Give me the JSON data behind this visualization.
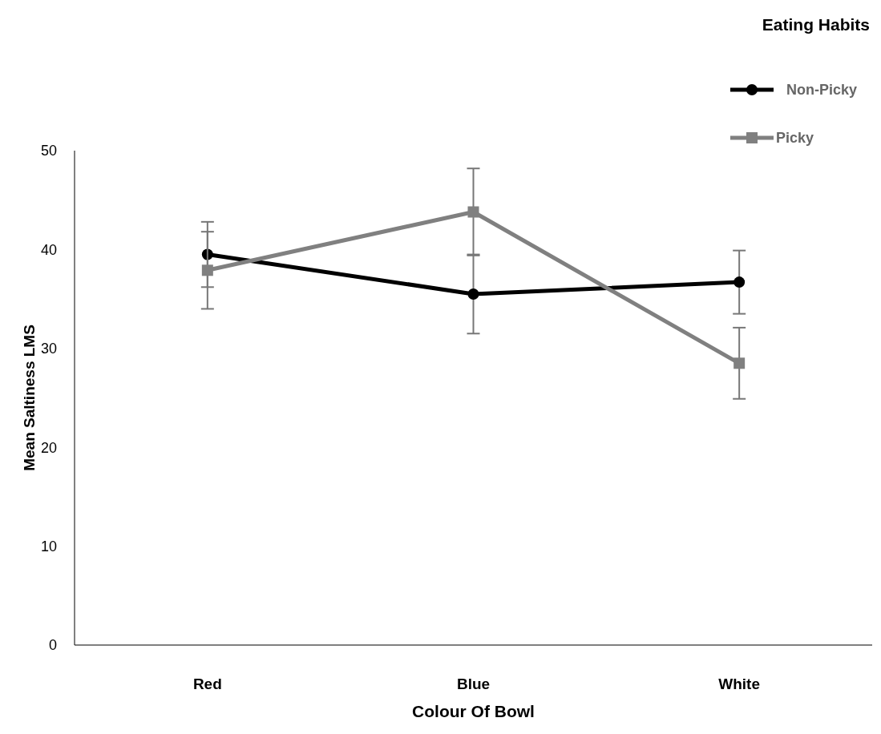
{
  "chart_data": {
    "type": "line",
    "xlabel": "Colour Of Bowl",
    "ylabel": "Mean Saltiness LMS",
    "legend_title": "Eating Habits",
    "legend": "top right",
    "categories": [
      "Red",
      "Blue",
      "White"
    ],
    "ylim": [
      0,
      50
    ],
    "yticks": [
      0,
      10,
      20,
      30,
      40,
      50
    ],
    "grid": false,
    "series": [
      {
        "name": "Non-Picky",
        "color": "#000000",
        "marker": "circle",
        "values": [
          39.5,
          35.5,
          36.7
        ],
        "errors": [
          3.3,
          4,
          3.2
        ]
      },
      {
        "name": "Picky",
        "color": "#808080",
        "marker": "square",
        "values": [
          37.9,
          43.8,
          28.5
        ],
        "errors": [
          3.9,
          4.4,
          3.6
        ]
      }
    ]
  }
}
